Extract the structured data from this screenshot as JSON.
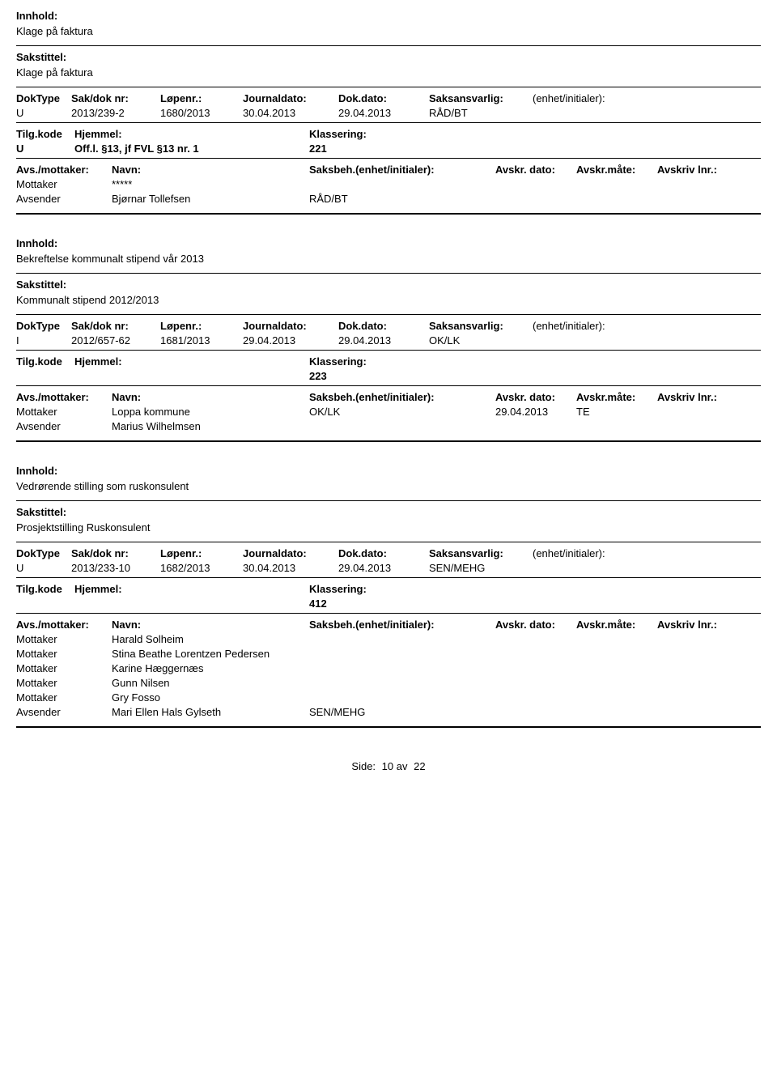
{
  "labels": {
    "innhold": "Innhold:",
    "sakstittel": "Sakstittel:",
    "doktype": "DokType",
    "sakdok": "Sak/dok nr:",
    "lopenr": "Løpenr.:",
    "journaldato": "Journaldato:",
    "dokdato": "Dok.dato:",
    "saksansvarlig": "Saksansvarlig:",
    "enhet": "(enhet/initialer):",
    "tilgkode": "Tilg.kode",
    "hjemmel": "Hjemmel:",
    "klassering": "Klassering:",
    "avsmottaker": "Avs./mottaker:",
    "navn": "Navn:",
    "saksbeh": "Saksbeh.(enhet/initialer):",
    "avskrdato": "Avskr. dato:",
    "avskrmate": "Avskr.måte:",
    "avskrlnr": "Avskriv lnr.:",
    "mottaker": "Mottaker",
    "avsender": "Avsender",
    "side": "Side:",
    "av": "av"
  },
  "records": [
    {
      "innhold": "Klage på faktura",
      "sakstittel": "Klage på faktura",
      "doktype": "U",
      "sakdok": "2013/239-2",
      "lopenr": "1680/2013",
      "journaldato": "30.04.2013",
      "dokdato": "29.04.2013",
      "saksansvarlig": "RÅD/BT",
      "enhet": "",
      "tilgkode": "U",
      "hjemmel": "Off.l. §13, jf FVL §13 nr. 1",
      "klassering": "221",
      "parties": [
        {
          "role": "Mottaker",
          "navn": "*****",
          "saksbeh": "",
          "avskrdato": "",
          "avskrmate": "",
          "avskrlnr": ""
        },
        {
          "role": "Avsender",
          "navn": "Bjørnar Tollefsen",
          "saksbeh": "RÅD/BT",
          "avskrdato": "",
          "avskrmate": "",
          "avskrlnr": ""
        }
      ]
    },
    {
      "innhold": "Bekreftelse kommunalt stipend vår 2013",
      "sakstittel": "Kommunalt stipend 2012/2013",
      "doktype": "I",
      "sakdok": "2012/657-62",
      "lopenr": "1681/2013",
      "journaldato": "29.04.2013",
      "dokdato": "29.04.2013",
      "saksansvarlig": "OK/LK",
      "enhet": "",
      "tilgkode": "",
      "hjemmel": "",
      "klassering": "223",
      "parties": [
        {
          "role": "Mottaker",
          "navn": "Loppa kommune",
          "saksbeh": "OK/LK",
          "avskrdato": "29.04.2013",
          "avskrmate": "TE",
          "avskrlnr": ""
        },
        {
          "role": "Avsender",
          "navn": "Marius Wilhelmsen",
          "saksbeh": "",
          "avskrdato": "",
          "avskrmate": "",
          "avskrlnr": ""
        }
      ]
    },
    {
      "innhold": "Vedrørende stilling som ruskonsulent",
      "sakstittel": "Prosjektstilling Ruskonsulent",
      "doktype": "U",
      "sakdok": "2013/233-10",
      "lopenr": "1682/2013",
      "journaldato": "30.04.2013",
      "dokdato": "29.04.2013",
      "saksansvarlig": "SEN/MEHG",
      "enhet": "",
      "tilgkode": "",
      "hjemmel": "",
      "klassering": "412",
      "parties": [
        {
          "role": "Mottaker",
          "navn": "Harald Solheim",
          "saksbeh": "",
          "avskrdato": "",
          "avskrmate": "",
          "avskrlnr": ""
        },
        {
          "role": "Mottaker",
          "navn": "Stina Beathe Lorentzen Pedersen",
          "saksbeh": "",
          "avskrdato": "",
          "avskrmate": "",
          "avskrlnr": ""
        },
        {
          "role": "Mottaker",
          "navn": "Karine Hæggernæs",
          "saksbeh": "",
          "avskrdato": "",
          "avskrmate": "",
          "avskrlnr": ""
        },
        {
          "role": "Mottaker",
          "navn": "Gunn Nilsen",
          "saksbeh": "",
          "avskrdato": "",
          "avskrmate": "",
          "avskrlnr": ""
        },
        {
          "role": "Mottaker",
          "navn": "Gry Fosso",
          "saksbeh": "",
          "avskrdato": "",
          "avskrmate": "",
          "avskrlnr": ""
        },
        {
          "role": "Avsender",
          "navn": "Mari Ellen Hals Gylseth",
          "saksbeh": "SEN/MEHG",
          "avskrdato": "",
          "avskrmate": "",
          "avskrlnr": ""
        }
      ]
    }
  ],
  "pager": {
    "current": "10",
    "total": "22"
  },
  "colors": {
    "text": "#000000",
    "background": "#ffffff",
    "rule": "#000000"
  },
  "typography": {
    "font_family": "Arial, Helvetica, sans-serif",
    "base_size_pt": 10,
    "bold_weight": 700
  }
}
